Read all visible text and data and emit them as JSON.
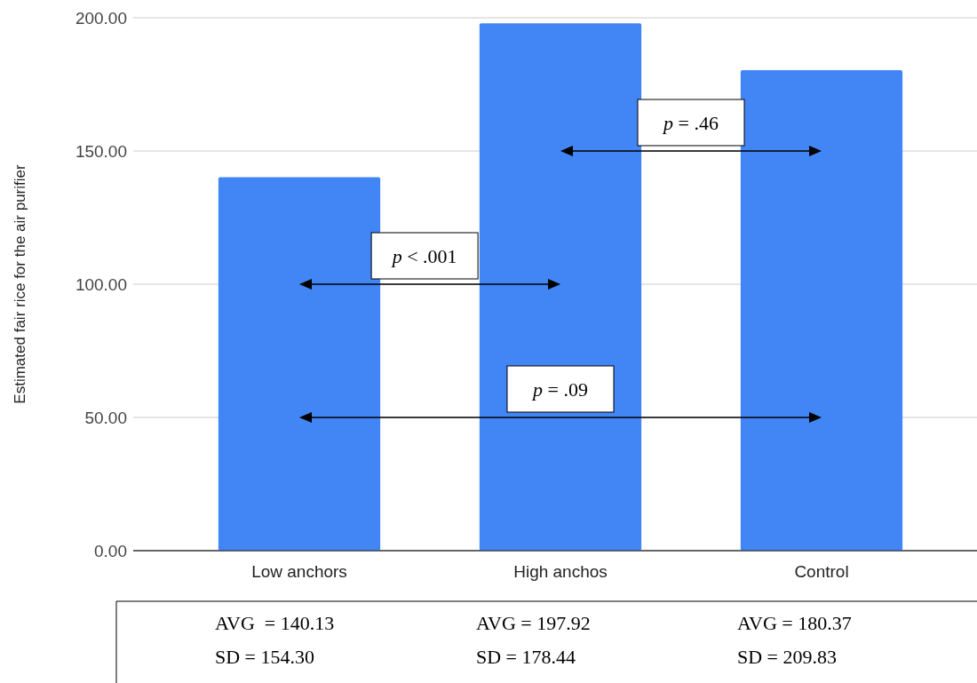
{
  "chart_data": {
    "type": "bar",
    "ylabel": "Estimated fair rice for the air purifier",
    "categories": [
      "Low anchors",
      "High anchos",
      "Control"
    ],
    "values": [
      140.13,
      197.92,
      180.37
    ],
    "color": "#4285f4",
    "value_labels": [
      "AVG  = 140.13",
      "AVG = 197.92",
      "AVG = 180.37"
    ],
    "ylim": [
      0,
      200
    ],
    "yticks": [
      {
        "value": 0,
        "label": "0.00"
      },
      {
        "value": 50,
        "label": "50.00"
      },
      {
        "value": 100,
        "label": "100.00"
      },
      {
        "value": 150,
        "label": "150.00"
      },
      {
        "value": 200,
        "label": "200.00"
      }
    ],
    "grid": "y",
    "annotations": [
      "p = .46",
      "p < .001",
      "p = .09",
      "SD = 154.30",
      "SD = 178.44",
      "SD = 209.83"
    ]
  }
}
